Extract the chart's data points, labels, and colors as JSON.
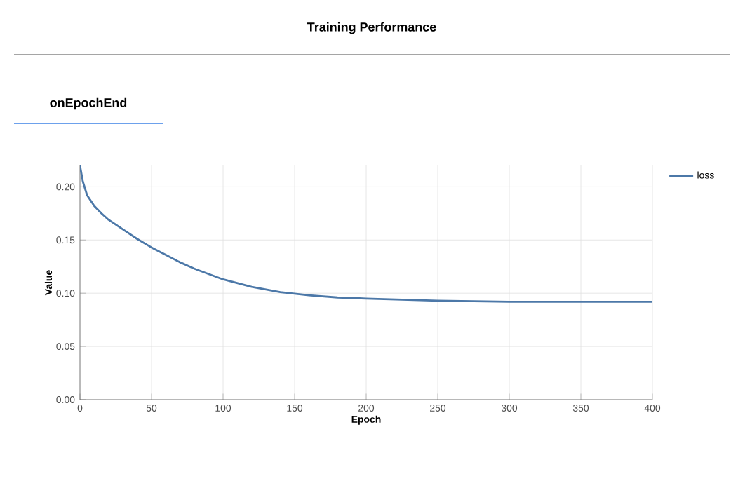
{
  "chart_data": {
    "type": "line",
    "title": "Training Performance",
    "subtitle": "onEpochEnd",
    "xlabel": "Epoch",
    "ylabel": "Value",
    "xlim": [
      0,
      400
    ],
    "ylim": [
      0,
      0.22
    ],
    "xticks": [
      0,
      50,
      100,
      150,
      200,
      250,
      300,
      350,
      400
    ],
    "yticks": [
      {
        "value": 0,
        "label": "0.00"
      },
      {
        "value": 0.05,
        "label": "0.05"
      },
      {
        "value": 0.1,
        "label": "0.10"
      },
      {
        "value": 0.15,
        "label": "0.15"
      },
      {
        "value": 0.2,
        "label": "0.20"
      }
    ],
    "grid": true,
    "legend": "top right",
    "marker": "none",
    "line_style": "solid",
    "series": [
      {
        "name": "loss",
        "color": "#4c78a8",
        "x": [
          0,
          2,
          5,
          10,
          15,
          20,
          30,
          40,
          50,
          60,
          70,
          80,
          90,
          100,
          120,
          140,
          160,
          180,
          200,
          225,
          250,
          300,
          350,
          400
        ],
        "values": [
          0.22,
          0.205,
          0.192,
          0.182,
          0.175,
          0.169,
          0.16,
          0.151,
          0.143,
          0.136,
          0.129,
          0.123,
          0.118,
          0.113,
          0.106,
          0.101,
          0.098,
          0.096,
          0.095,
          0.094,
          0.093,
          0.092,
          0.092,
          0.092
        ]
      }
    ]
  }
}
